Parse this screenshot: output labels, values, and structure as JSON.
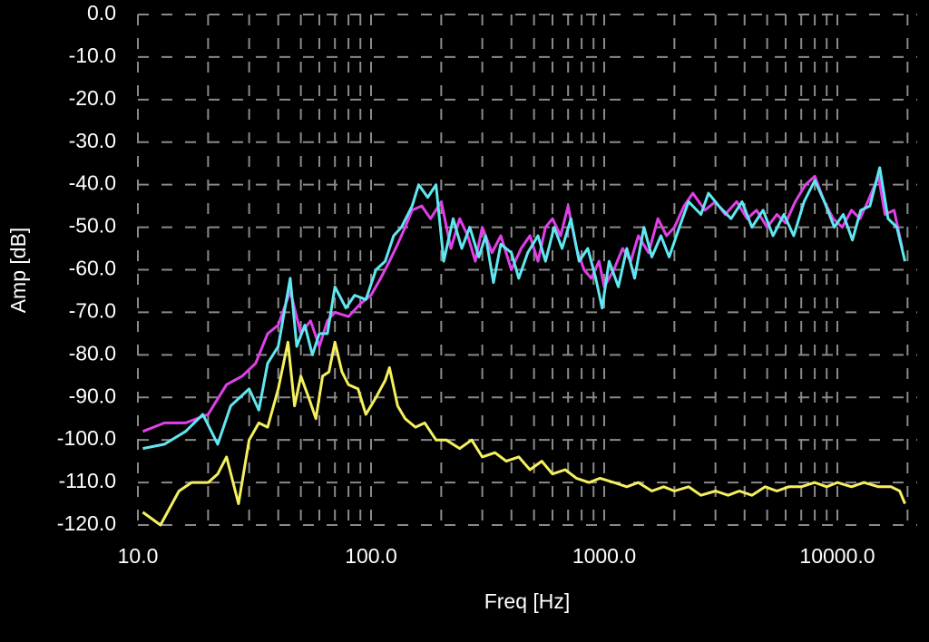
{
  "chart_data": {
    "type": "line",
    "xlabel": "Freq [Hz]",
    "ylabel": "Amp [dB]",
    "xscale": "log",
    "grid": true,
    "xlim": [
      10,
      22000
    ],
    "ylim": [
      -120,
      0
    ],
    "xticks": [
      {
        "value": 10,
        "label": "10.0"
      },
      {
        "value": 100,
        "label": "100.0"
      },
      {
        "value": 1000,
        "label": "1000.0"
      },
      {
        "value": 10000,
        "label": "10000.0"
      }
    ],
    "xminor": [
      20,
      30,
      40,
      50,
      60,
      70,
      80,
      90,
      200,
      300,
      400,
      500,
      600,
      700,
      800,
      900,
      2000,
      3000,
      4000,
      5000,
      6000,
      7000,
      8000,
      9000,
      20000
    ],
    "yticks": [
      {
        "value": 0,
        "label": "0.0"
      },
      {
        "value": -10,
        "label": "-10.0"
      },
      {
        "value": -20,
        "label": "-20.0"
      },
      {
        "value": -30,
        "label": "-30.0"
      },
      {
        "value": -40,
        "label": "-40.0"
      },
      {
        "value": -50,
        "label": "-50.0"
      },
      {
        "value": -60,
        "label": "-60.0"
      },
      {
        "value": -70,
        "label": "-70.0"
      },
      {
        "value": -80,
        "label": "-80.0"
      },
      {
        "value": -90,
        "label": "-90.0"
      },
      {
        "value": -100,
        "label": "-100.0"
      },
      {
        "value": -110,
        "label": "-110.0"
      },
      {
        "value": -120,
        "label": "-120.0"
      }
    ],
    "series": [
      {
        "color": "#e040e8",
        "x": [
          10.5,
          13,
          16,
          20,
          24,
          28,
          32,
          36,
          40,
          45,
          50,
          55,
          60,
          65,
          70,
          80,
          90,
          100,
          110,
          120,
          130,
          140,
          150,
          165,
          180,
          200,
          220,
          240,
          260,
          280,
          300,
          330,
          360,
          400,
          440,
          480,
          520,
          560,
          600,
          650,
          700,
          760,
          820,
          880,
          950,
          1000,
          1100,
          1200,
          1300,
          1400,
          1550,
          1700,
          1850,
          2000,
          2200,
          2400,
          2700,
          3000,
          3300,
          3700,
          4100,
          4500,
          5000,
          5500,
          6000,
          6600,
          7300,
          8000,
          8800,
          9600,
          10500,
          11500,
          12500,
          13500,
          15000,
          16000,
          17500,
          19000
        ],
        "values": [
          -98,
          -96,
          -96,
          -94,
          -87,
          -85,
          -82,
          -75,
          -73,
          -65,
          -75,
          -72,
          -78,
          -72,
          -70,
          -71,
          -68,
          -66,
          -62,
          -58,
          -54,
          -50,
          -46,
          -45,
          -48,
          -44,
          -55,
          -48,
          -52,
          -58,
          -50,
          -56,
          -52,
          -60,
          -55,
          -52,
          -58,
          -50,
          -48,
          -52,
          -45,
          -55,
          -60,
          -62,
          -58,
          -64,
          -60,
          -55,
          -58,
          -52,
          -56,
          -48,
          -52,
          -50,
          -45,
          -42,
          -46,
          -44,
          -47,
          -44,
          -48,
          -46,
          -50,
          -47,
          -49,
          -44,
          -40,
          -38,
          -44,
          -48,
          -50,
          -46,
          -48,
          -44,
          -38,
          -47,
          -46,
          -55
        ]
      },
      {
        "color": "#60e8f0",
        "x": [
          10.5,
          13,
          16,
          19,
          22,
          25,
          30,
          33,
          36,
          40,
          45,
          48,
          52,
          56,
          60,
          65,
          70,
          78,
          85,
          95,
          105,
          115,
          125,
          135,
          150,
          160,
          175,
          190,
          205,
          225,
          245,
          265,
          290,
          310,
          335,
          360,
          400,
          430,
          470,
          520,
          560,
          610,
          660,
          720,
          780,
          850,
          920,
          980,
          1050,
          1150,
          1250,
          1350,
          1480,
          1600,
          1750,
          1900,
          2100,
          2300,
          2600,
          2800,
          3100,
          3500,
          3900,
          4300,
          4800,
          5300,
          5900,
          6500,
          7200,
          8000,
          8800,
          9700,
          10600,
          11600,
          12600,
          13800,
          15200,
          16500,
          18000,
          19500
        ],
        "values": [
          -102,
          -101,
          -98,
          -94,
          -101,
          -92,
          -88,
          -93,
          -82,
          -78,
          -62,
          -78,
          -73,
          -80,
          -75,
          -75,
          -64,
          -69,
          -66,
          -67,
          -60,
          -58,
          -52,
          -50,
          -45,
          -40,
          -43,
          -40,
          -58,
          -48,
          -55,
          -50,
          -57,
          -52,
          -63,
          -54,
          -56,
          -62,
          -56,
          -52,
          -58,
          -50,
          -55,
          -48,
          -58,
          -55,
          -62,
          -69,
          -58,
          -64,
          -55,
          -62,
          -50,
          -57,
          -52,
          -57,
          -50,
          -44,
          -47,
          -42,
          -45,
          -48,
          -44,
          -50,
          -46,
          -52,
          -47,
          -52,
          -44,
          -39,
          -44,
          -50,
          -47,
          -53,
          -46,
          -45,
          -36,
          -48,
          -50,
          -58
        ]
      },
      {
        "color": "#f4f060",
        "x": [
          10.5,
          12.5,
          15,
          17,
          20,
          22,
          24,
          27,
          30,
          33,
          36,
          40,
          44,
          47,
          50,
          54,
          58,
          62,
          66,
          70,
          75,
          80,
          88,
          95,
          105,
          115,
          120,
          130,
          140,
          155,
          170,
          190,
          210,
          240,
          270,
          300,
          340,
          380,
          430,
          480,
          540,
          600,
          680,
          760,
          860,
          960,
          1100,
          1250,
          1400,
          1600,
          1800,
          2000,
          2300,
          2600,
          3000,
          3400,
          3800,
          4300,
          4900,
          5500,
          6200,
          7000,
          8000,
          9000,
          10000,
          11500,
          13000,
          15000,
          17000,
          18500,
          19500
        ],
        "values": [
          -117,
          -120,
          -112,
          -110,
          -110,
          -108,
          -104,
          -115,
          -100,
          -96,
          -97,
          -88,
          -77,
          -92,
          -85,
          -90,
          -95,
          -85,
          -84,
          -77,
          -84,
          -87,
          -88,
          -94,
          -90,
          -86,
          -83,
          -92,
          -95,
          -97,
          -96,
          -100,
          -100,
          -102,
          -100,
          -104,
          -103,
          -105,
          -104,
          -107,
          -105,
          -108,
          -107,
          -109,
          -110,
          -109,
          -110,
          -111,
          -110,
          -112,
          -111,
          -112,
          -111,
          -113,
          -112,
          -113,
          -112,
          -113,
          -111,
          -112,
          -111,
          -111,
          -110,
          -111,
          -110,
          -111,
          -110,
          -111,
          -111,
          -112,
          -115
        ]
      }
    ]
  }
}
